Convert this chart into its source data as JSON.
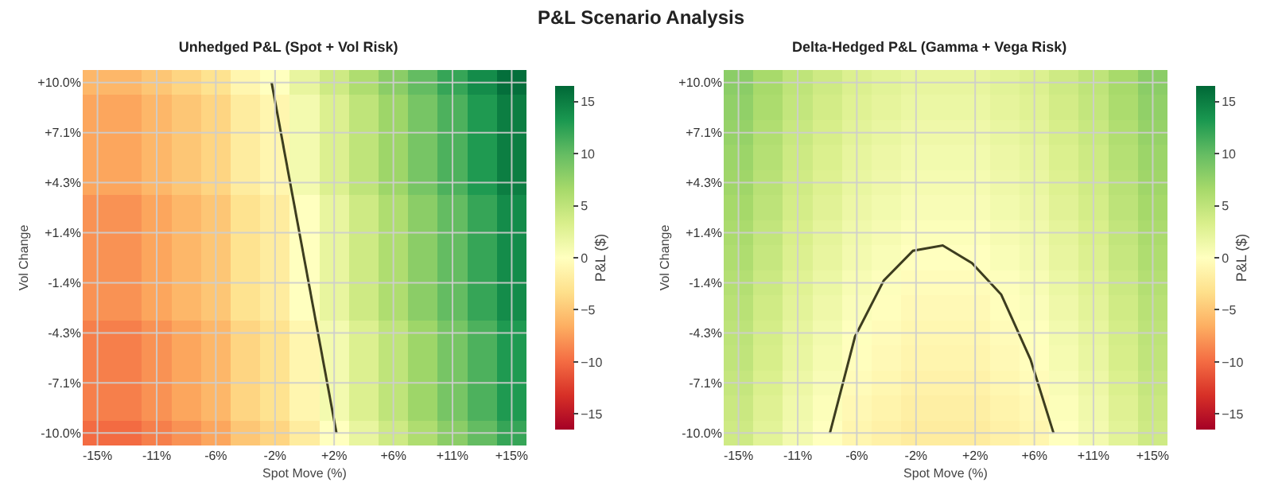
{
  "chart_data": [
    {
      "type": "other",
      "title": "P&L Scenario Analysis"
    },
    {
      "type": "heatmap",
      "title": "Unhedged P&L (Spot + Vol Risk)",
      "xlabel": "Spot Move (%)",
      "ylabel": "Vol Change",
      "clabel": "P&L ($)",
      "xlim": [
        -16.07,
        16.07
      ],
      "ylim": [
        -10.71,
        10.71
      ],
      "xticks": [
        {
          "value": -15,
          "label": "-15%"
        },
        {
          "value": -10.71,
          "label": "-11%"
        },
        {
          "value": -6.43,
          "label": "-6%"
        },
        {
          "value": -2.14,
          "label": "-2%"
        },
        {
          "value": 2.14,
          "label": "+2%"
        },
        {
          "value": 6.43,
          "label": "+6%"
        },
        {
          "value": 10.71,
          "label": "+11%"
        },
        {
          "value": 15,
          "label": "+15%"
        }
      ],
      "yticks": [
        {
          "value": -10,
          "label": "-10.0%"
        },
        {
          "value": -7.14,
          "label": "-7.1%"
        },
        {
          "value": -4.29,
          "label": "-4.3%"
        },
        {
          "value": -1.43,
          "label": "-1.4%"
        },
        {
          "value": 1.43,
          "label": "+1.4%"
        },
        {
          "value": 4.29,
          "label": "+4.3%"
        },
        {
          "value": 7.14,
          "label": "+7.1%"
        },
        {
          "value": 10,
          "label": "+10.0%"
        }
      ],
      "clim": [
        -16.5,
        16.5
      ],
      "cticks": [
        {
          "value": -15,
          "label": "−15"
        },
        {
          "value": -10,
          "label": "−10"
        },
        {
          "value": -5,
          "label": "−5"
        },
        0,
        5,
        10,
        15
      ],
      "grid": true,
      "cells": [
        [
          -6,
          -6,
          -5,
          -4,
          -3,
          -1,
          0,
          2,
          4,
          6,
          8,
          10,
          12,
          14,
          16
        ],
        [
          -7,
          -7,
          -6,
          -5,
          -4,
          -2,
          -1,
          1,
          3,
          5,
          7,
          9,
          11,
          13,
          15
        ],
        [
          -7,
          -7,
          -6,
          -5,
          -4,
          -2,
          -1,
          1,
          3,
          5,
          7,
          9,
          11,
          13,
          15
        ],
        [
          -7,
          -7,
          -6,
          -5,
          -4,
          -2,
          -1,
          1,
          3,
          5,
          7,
          9,
          11,
          13,
          15
        ],
        [
          -7,
          -7,
          -6,
          -5,
          -4,
          -2,
          -1,
          1,
          3,
          5,
          7,
          9,
          11,
          13,
          15
        ],
        [
          -8,
          -8,
          -7,
          -6,
          -5,
          -3,
          -2,
          0,
          2,
          4,
          6,
          8,
          10,
          12,
          14
        ],
        [
          -8,
          -8,
          -7,
          -6,
          -5,
          -3,
          -2,
          0,
          2,
          4,
          6,
          8,
          10,
          12,
          14
        ],
        [
          -8,
          -8,
          -7,
          -6,
          -5,
          -3,
          -2,
          0,
          2,
          4,
          6,
          8,
          10,
          12,
          14
        ],
        [
          -8,
          -8,
          -7,
          -6,
          -5,
          -3,
          -2,
          0,
          2,
          4,
          6,
          8,
          10,
          12,
          14
        ],
        [
          -8,
          -8,
          -7,
          -6,
          -5,
          -3,
          -2,
          0,
          2,
          4,
          6,
          8,
          10,
          12,
          14
        ],
        [
          -9,
          -9,
          -8,
          -7,
          -6,
          -4,
          -3,
          -1,
          1,
          3,
          5,
          7,
          9,
          11,
          13
        ],
        [
          -9,
          -9,
          -8,
          -7,
          -6,
          -4,
          -3,
          -1,
          1,
          3,
          5,
          7,
          9,
          11,
          13
        ],
        [
          -9,
          -9,
          -8,
          -7,
          -6,
          -4,
          -3,
          -1,
          1,
          3,
          5,
          7,
          9,
          11,
          13
        ],
        [
          -9,
          -9,
          -8,
          -7,
          -6,
          -4,
          -3,
          -1,
          1,
          3,
          5,
          7,
          9,
          11,
          13
        ],
        [
          -10,
          -10,
          -9,
          -8,
          -7,
          -5,
          -4,
          -2,
          0,
          2,
          4,
          6,
          8,
          10,
          12
        ]
      ],
      "series": [
        {
          "type": "line",
          "color": "#3d3d1f",
          "x": [
            -2.39,
            2.31
          ],
          "values": [
            10,
            -10
          ]
        }
      ]
    },
    {
      "type": "heatmap",
      "title": "Delta-Hedged P&L (Gamma + Vega Risk)",
      "xlabel": "Spot Move (%)",
      "ylabel": "Vol Change",
      "clabel": "P&L ($)",
      "xlim": [
        -16.07,
        16.07
      ],
      "ylim": [
        -10.71,
        10.71
      ],
      "xticks": [
        {
          "value": -15,
          "label": "-15%"
        },
        {
          "value": -10.71,
          "label": "-11%"
        },
        {
          "value": -6.43,
          "label": "-6%"
        },
        {
          "value": -2.14,
          "label": "-2%"
        },
        {
          "value": 2.14,
          "label": "+2%"
        },
        {
          "value": 6.43,
          "label": "+6%"
        },
        {
          "value": 10.71,
          "label": "+11%"
        },
        {
          "value": 15,
          "label": "+15%"
        }
      ],
      "yticks": [
        {
          "value": -10,
          "label": "-10.0%"
        },
        {
          "value": -7.14,
          "label": "-7.1%"
        },
        {
          "value": -4.29,
          "label": "-4.3%"
        },
        {
          "value": -1.43,
          "label": "-1.4%"
        },
        {
          "value": 1.43,
          "label": "+1.4%"
        },
        {
          "value": 4.29,
          "label": "+4.3%"
        },
        {
          "value": 7.14,
          "label": "+7.1%"
        },
        {
          "value": 10,
          "label": "+10.0%"
        }
      ],
      "clim": [
        -16.5,
        16.5
      ],
      "cticks": [
        {
          "value": -15,
          "label": "−15"
        },
        {
          "value": -10,
          "label": "−10"
        },
        {
          "value": -5,
          "label": "−5"
        },
        0,
        5,
        10,
        15
      ],
      "grid": true,
      "cells": [
        [
          8,
          6.5,
          5,
          4,
          3,
          2.5,
          2,
          2,
          2,
          2.5,
          3,
          4,
          5,
          6.5,
          8
        ],
        [
          7.7,
          6.2,
          4.7,
          3.7,
          2.7,
          2.2,
          1.7,
          1.7,
          1.7,
          2.2,
          2.7,
          3.7,
          4.7,
          6.2,
          7.7
        ],
        [
          7.4,
          5.9,
          4.4,
          3.4,
          2.4,
          1.9,
          1.4,
          1.4,
          1.4,
          1.9,
          2.4,
          3.4,
          4.4,
          5.9,
          7.4
        ],
        [
          7.1,
          5.6,
          4.1,
          3.1,
          2.1,
          1.6,
          1.1,
          1.1,
          1.1,
          1.6,
          2.1,
          3.1,
          4.1,
          5.6,
          7.1
        ],
        [
          6.9,
          5.4,
          3.9,
          2.9,
          1.9,
          1.4,
          0.9,
          0.9,
          0.9,
          1.4,
          1.9,
          2.9,
          3.9,
          5.4,
          6.9
        ],
        [
          6.6,
          5.1,
          3.6,
          2.6,
          1.6,
          1.1,
          0.6,
          0.6,
          0.6,
          1.1,
          1.6,
          2.6,
          3.6,
          5.1,
          6.6
        ],
        [
          6.3,
          4.8,
          3.3,
          2.3,
          1.3,
          0.8,
          0.3,
          0.3,
          0.3,
          0.8,
          1.3,
          2.3,
          3.3,
          4.8,
          6.3
        ],
        [
          6,
          4.5,
          3,
          2,
          1,
          0.5,
          0,
          0,
          0,
          0.5,
          1,
          2,
          3,
          4.5,
          6
        ],
        [
          5.7,
          4.2,
          2.7,
          1.7,
          0.7,
          0.2,
          -0.3,
          -0.3,
          -0.3,
          0.2,
          0.7,
          1.7,
          2.7,
          4.2,
          5.7
        ],
        [
          5.4,
          3.9,
          2.4,
          1.4,
          0.4,
          -0.1,
          -0.6,
          -0.6,
          -0.6,
          -0.1,
          0.4,
          1.4,
          2.4,
          3.9,
          5.4
        ],
        [
          5.1,
          3.6,
          2.1,
          1.1,
          0.1,
          -0.4,
          -0.9,
          -0.9,
          -0.9,
          -0.4,
          0.1,
          1.1,
          2.1,
          3.6,
          5.1
        ],
        [
          4.9,
          3.4,
          1.9,
          0.9,
          -0.1,
          -0.6,
          -1.1,
          -1.1,
          -1.1,
          -0.6,
          -0.1,
          0.9,
          1.9,
          3.4,
          4.9
        ],
        [
          4.6,
          3.1,
          1.6,
          0.6,
          -0.4,
          -0.9,
          -1.4,
          -1.4,
          -1.4,
          -0.9,
          -0.4,
          0.6,
          1.6,
          3.1,
          4.6
        ],
        [
          4.3,
          2.8,
          1.3,
          0.3,
          -0.7,
          -1.2,
          -1.7,
          -1.7,
          -1.7,
          -1.2,
          -0.7,
          0.3,
          1.3,
          2.8,
          4.3
        ],
        [
          4,
          2.5,
          1,
          0,
          -1,
          -1.5,
          -2,
          -2,
          -2,
          -1.5,
          -1,
          0,
          1,
          2.5,
          4
        ]
      ],
      "series": [
        {
          "type": "line",
          "color": "#3d3d1f",
          "x": [
            -8.38,
            -6.56,
            -4.48,
            -2.36,
            -0.21,
            1.91,
            4.03,
            6.15,
            7.82
          ],
          "values": [
            -10,
            -4.5,
            -1.3,
            0.4,
            0.7,
            -0.3,
            -2.1,
            -5.8,
            -10
          ]
        }
      ]
    }
  ]
}
